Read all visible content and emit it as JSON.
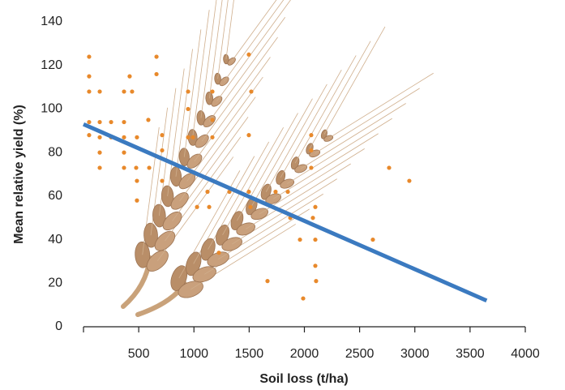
{
  "chart_data": {
    "type": "scatter",
    "x_label": "Soil loss (t/ha)",
    "y_label": "Mean relative yield (%)",
    "xlim": [
      0,
      4000
    ],
    "xticks": [
      500,
      1000,
      1500,
      2000,
      2500,
      3000,
      3500,
      4000
    ],
    "ylim": [
      0,
      140
    ],
    "yticks": [
      0,
      20,
      40,
      60,
      80,
      100,
      120,
      140
    ],
    "color": "#e8892b",
    "x": [
      51,
      51,
      51,
      51,
      51,
      147,
      147,
      147,
      147,
      147,
      250,
      250,
      367,
      367,
      367,
      367,
      367,
      418,
      440,
      477,
      484,
      484,
      484,
      587,
      595,
      661,
      661,
      712,
      712,
      712,
      947,
      947,
      947,
      991,
      1028,
      1123,
      1138,
      1167,
      1167,
      1167,
      1226,
      1321,
      1497,
      1519,
      1497,
      1497,
      1512,
      1666,
      1739,
      1850,
      1872,
      1960,
      1989,
      2062,
      2062,
      2062,
      2077,
      2099,
      2099,
      2099,
      2106,
      2620,
      2767,
      2950
    ],
    "y": [
      124,
      115,
      108,
      94,
      88,
      108,
      94,
      87,
      80,
      73,
      94,
      87,
      108,
      94,
      87,
      80,
      73,
      115,
      108,
      73,
      87,
      67,
      58,
      95,
      73,
      124,
      116,
      88,
      81,
      67,
      108,
      100,
      87,
      87,
      55,
      62,
      55,
      108,
      95,
      87,
      34,
      62,
      125,
      108,
      88,
      62,
      55,
      21,
      62,
      62,
      50,
      40,
      13,
      88,
      81,
      73,
      50,
      55,
      40,
      28,
      21,
      40,
      73,
      67
    ],
    "trendline": {
      "x": [
        0,
        3650
      ],
      "y": [
        93,
        12
      ],
      "color": "#3b7ac0"
    }
  }
}
